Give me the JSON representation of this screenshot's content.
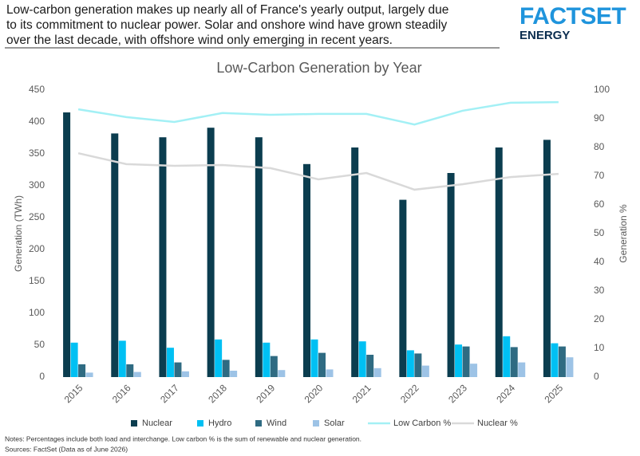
{
  "header": {
    "lines": [
      "Low-carbon generation makes up nearly all of France's yearly output, largely due",
      "to its commitment to nuclear power. Solar and onshore wind have grown steadily",
      "over the last decade, with offshore wind only emerging in recent years."
    ],
    "logo": "FACTSET",
    "logo_sub": "ENERGY"
  },
  "chart_data": {
    "type": "bar",
    "title": "Low-Carbon Generation by Year",
    "y_label": "Generation (TWh)",
    "y2_label": "Generation %",
    "categories": [
      "2015",
      "2016",
      "2017",
      "2018",
      "2019",
      "2020",
      "2021",
      "2022",
      "2023",
      "2024",
      "2025"
    ],
    "series": [
      {
        "name": "Nuclear",
        "type": "bar",
        "color": "#0b3d4f",
        "values": [
          415,
          382,
          376,
          391,
          376,
          334,
          360,
          278,
          320,
          360,
          372
        ]
      },
      {
        "name": "Hydro",
        "type": "bar",
        "color": "#00c0f3",
        "values": [
          54,
          57,
          46,
          59,
          54,
          59,
          56,
          42,
          51,
          64,
          53
        ]
      },
      {
        "name": "Wind",
        "type": "bar",
        "color": "#2f6b82",
        "values": [
          20,
          20,
          23,
          27,
          33,
          38,
          35,
          37,
          48,
          47,
          48
        ]
      },
      {
        "name": "Solar",
        "type": "bar",
        "color": "#9dc3e6",
        "values": [
          7,
          8,
          9,
          10,
          11,
          12,
          14,
          18,
          21,
          23,
          31
        ]
      },
      {
        "name": "Low Carbon %",
        "type": "line",
        "axis": "y2",
        "color": "#a3f0f5",
        "values": [
          93.3,
          90.6,
          88.9,
          92,
          91.4,
          91.7,
          91.7,
          88,
          92.8,
          95.6,
          95.8
        ]
      },
      {
        "name": "Nuclear %",
        "type": "line",
        "axis": "y2",
        "color": "#d9d9d9",
        "values": [
          78,
          74.2,
          73.6,
          73.9,
          72.8,
          68.9,
          71.1,
          65.3,
          67.2,
          69.7,
          70.8
        ]
      }
    ],
    "ylim": [
      0,
      450
    ],
    "yticks": [
      0,
      50,
      100,
      150,
      200,
      250,
      300,
      350,
      400,
      450
    ],
    "y2lim": [
      0,
      100
    ],
    "y2ticks": [
      0,
      10,
      20,
      30,
      40,
      50,
      60,
      70,
      80,
      90,
      100
    ],
    "grid": false
  },
  "notes": [
    "Notes: Percentages include both load and interchange. Low carbon % is the sum of renewable and nuclear generation.",
    "Sources: FactSet (Data as of June 2026)"
  ]
}
